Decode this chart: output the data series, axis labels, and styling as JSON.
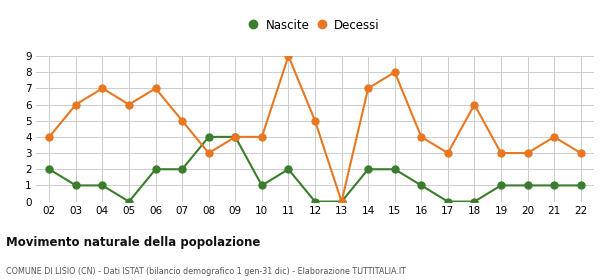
{
  "years": [
    "02",
    "03",
    "04",
    "05",
    "06",
    "07",
    "08",
    "09",
    "10",
    "11",
    "12",
    "13",
    "14",
    "15",
    "16",
    "17",
    "18",
    "19",
    "20",
    "21",
    "22"
  ],
  "nascite": [
    2,
    1,
    1,
    0,
    2,
    2,
    4,
    4,
    1,
    2,
    0,
    0,
    2,
    2,
    1,
    0,
    0,
    1,
    1,
    1,
    1
  ],
  "decessi": [
    4,
    6,
    7,
    6,
    7,
    5,
    3,
    4,
    4,
    9,
    5,
    0,
    7,
    8,
    4,
    3,
    6,
    3,
    3,
    4,
    3
  ],
  "nascite_color": "#3a7d2c",
  "decessi_color": "#e87722",
  "nascite_label": "Nascite",
  "decessi_label": "Decessi",
  "title": "Movimento naturale della popolazione",
  "subtitle": "COMUNE DI LISIO (CN) - Dati ISTAT (bilancio demografico 1 gen-31 dic) - Elaborazione TUTTITALIA.IT",
  "ylim": [
    0,
    9
  ],
  "yticks": [
    0,
    1,
    2,
    3,
    4,
    5,
    6,
    7,
    8,
    9
  ],
  "bg_color": "#ffffff",
  "grid_color": "#cccccc",
  "marker_size": 5,
  "linewidth": 1.5
}
